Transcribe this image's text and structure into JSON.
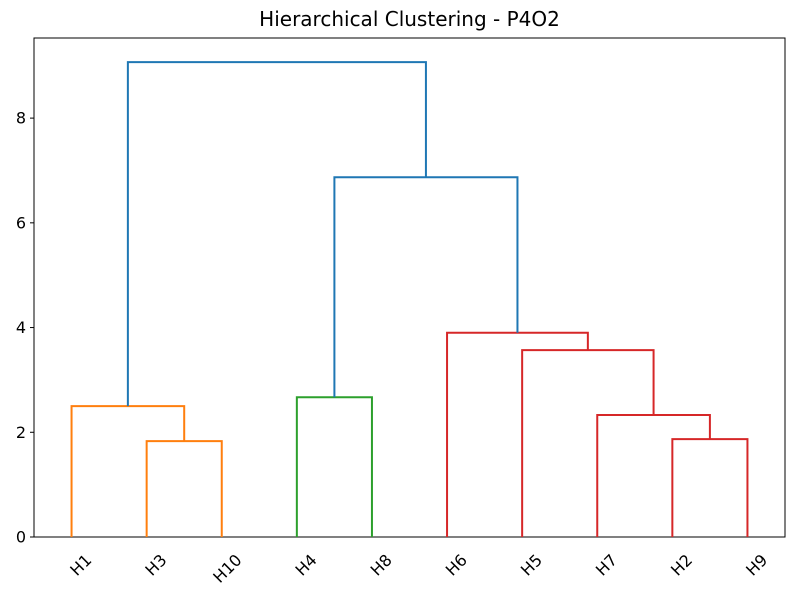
{
  "chart_data": {
    "type": "dendrogram",
    "title": "Hierarchical Clustering - P4O2",
    "leaves": [
      "H1",
      "H3",
      "H10",
      "H4",
      "H8",
      "H6",
      "H5",
      "H7",
      "H2",
      "H9"
    ],
    "leaf_x": [
      5,
      15,
      25,
      35,
      45,
      55,
      65,
      75,
      85,
      95
    ],
    "leaf_rotation": 45,
    "x_range": [
      0,
      100
    ],
    "ylim": [
      0,
      9.53
    ],
    "yticks": [
      0,
      2,
      4,
      6,
      8
    ],
    "ytick_labels": [
      "0",
      "2",
      "4",
      "6",
      "8"
    ],
    "grid": false,
    "legend": false,
    "line_width": 2,
    "colors": {
      "orange_cluster": "#ff7f0e",
      "green_cluster": "#2ca02c",
      "red_cluster": "#d62728",
      "link_blue": "#1f77b4",
      "axis": "#000000"
    },
    "links": [
      {
        "x1": 15,
        "h1": 0,
        "x2": 25,
        "h2": 0,
        "height": 1.83,
        "color": "#ff7f0e"
      },
      {
        "x1": 5,
        "h1": 0,
        "x2": 20,
        "h2": 1.83,
        "height": 2.5,
        "color": "#ff7f0e"
      },
      {
        "x1": 35,
        "h1": 0,
        "x2": 45,
        "h2": 0,
        "height": 2.67,
        "color": "#2ca02c"
      },
      {
        "x1": 85,
        "h1": 0,
        "x2": 95,
        "h2": 0,
        "height": 1.87,
        "color": "#d62728"
      },
      {
        "x1": 75,
        "h1": 0,
        "x2": 90,
        "h2": 1.87,
        "height": 2.33,
        "color": "#d62728"
      },
      {
        "x1": 65,
        "h1": 0,
        "x2": 82.5,
        "h2": 2.33,
        "height": 3.57,
        "color": "#d62728"
      },
      {
        "x1": 55,
        "h1": 0,
        "x2": 73.75,
        "h2": 3.57,
        "height": 3.9,
        "color": "#d62728"
      },
      {
        "x1": 40,
        "h1": 2.67,
        "x2": 64.375,
        "h2": 3.9,
        "height": 6.87,
        "color": "#1f77b4"
      },
      {
        "x1": 12.5,
        "h1": 2.5,
        "x2": 52.1875,
        "h2": 6.87,
        "height": 9.07,
        "color": "#1f77b4"
      }
    ]
  }
}
